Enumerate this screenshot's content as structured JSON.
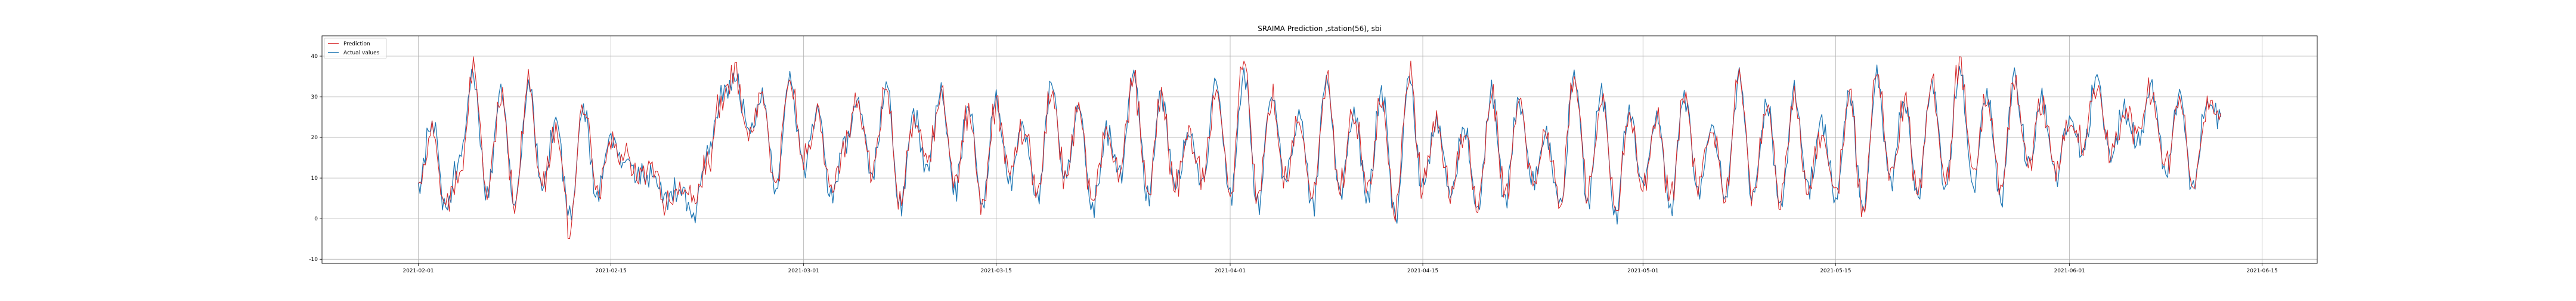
{
  "chart_data": {
    "type": "line",
    "title": "SRAIMA Prediction ,station(56), sbi",
    "xlabel": "",
    "ylabel": "",
    "x_axis": {
      "type": "date",
      "range": [
        "2021-01-25",
        "2021-06-19"
      ],
      "ticks": [
        "2021-02-01",
        "2021-02-15",
        "2021-03-01",
        "2021-03-15",
        "2021-04-01",
        "2021-04-15",
        "2021-05-01",
        "2021-05-15",
        "2021-06-01",
        "2021-06-15"
      ]
    },
    "y_axis": {
      "range": [
        -11,
        45
      ],
      "ticks": [
        -10,
        0,
        10,
        20,
        30,
        40
      ]
    },
    "grid": true,
    "legend": {
      "position": "top-left"
    },
    "data_start": "2021-02-01",
    "data_end": "2021-06-12",
    "series": [
      {
        "name": "Prediction",
        "color": "#d62728",
        "x": [
          "2021-02-01",
          "2021-02-02",
          "2021-02-03",
          "2021-02-04",
          "2021-02-05",
          "2021-02-06",
          "2021-02-07",
          "2021-02-08",
          "2021-02-09",
          "2021-02-10",
          "2021-02-11",
          "2021-02-12",
          "2021-02-13",
          "2021-02-14",
          "2021-02-15",
          "2021-02-16",
          "2021-02-17",
          "2021-02-18",
          "2021-02-19",
          "2021-02-20",
          "2021-02-21",
          "2021-02-22",
          "2021-02-23",
          "2021-02-24",
          "2021-02-25",
          "2021-02-26",
          "2021-02-27",
          "2021-02-28",
          "2021-03-01",
          "2021-03-02",
          "2021-03-03",
          "2021-03-04",
          "2021-03-05",
          "2021-03-06",
          "2021-03-07",
          "2021-03-08",
          "2021-03-09",
          "2021-03-10",
          "2021-03-11",
          "2021-03-12",
          "2021-03-13",
          "2021-03-14",
          "2021-03-15",
          "2021-03-16",
          "2021-03-17",
          "2021-03-18",
          "2021-03-19",
          "2021-03-20",
          "2021-03-21",
          "2021-03-22",
          "2021-03-23",
          "2021-03-24",
          "2021-03-25",
          "2021-03-26",
          "2021-03-27",
          "2021-03-28",
          "2021-03-29",
          "2021-03-30",
          "2021-03-31",
          "2021-04-01",
          "2021-04-02",
          "2021-04-03",
          "2021-04-04",
          "2021-04-05",
          "2021-04-06",
          "2021-04-07",
          "2021-04-08",
          "2021-04-09",
          "2021-04-10",
          "2021-04-11",
          "2021-04-12",
          "2021-04-13",
          "2021-04-14",
          "2021-04-15",
          "2021-04-16",
          "2021-04-17",
          "2021-04-18",
          "2021-04-19",
          "2021-04-20",
          "2021-04-21",
          "2021-04-22",
          "2021-04-23",
          "2021-04-24",
          "2021-04-25",
          "2021-04-26",
          "2021-04-27",
          "2021-04-28",
          "2021-04-29",
          "2021-04-30",
          "2021-05-01",
          "2021-05-02",
          "2021-05-03",
          "2021-05-04",
          "2021-05-05",
          "2021-05-06",
          "2021-05-07",
          "2021-05-08",
          "2021-05-09",
          "2021-05-10",
          "2021-05-11",
          "2021-05-12",
          "2021-05-13",
          "2021-05-14",
          "2021-05-15",
          "2021-05-16",
          "2021-05-17",
          "2021-05-18",
          "2021-05-19",
          "2021-05-20",
          "2021-05-21",
          "2021-05-22",
          "2021-05-23",
          "2021-05-24",
          "2021-05-25",
          "2021-05-26",
          "2021-05-27",
          "2021-05-28",
          "2021-05-29",
          "2021-05-30",
          "2021-05-31",
          "2021-06-01",
          "2021-06-02",
          "2021-06-03",
          "2021-06-04",
          "2021-06-05",
          "2021-06-06",
          "2021-06-07",
          "2021-06-08",
          "2021-06-09",
          "2021-06-10",
          "2021-06-11",
          "2021-06-12"
        ],
        "values": [
          10,
          22,
          3,
          12,
          38,
          6,
          30,
          4,
          34,
          8,
          22,
          -2,
          28,
          6,
          18,
          16,
          10,
          12,
          4,
          8,
          3,
          14,
          28,
          36,
          20,
          30,
          8,
          34,
          14,
          26,
          6,
          18,
          28,
          12,
          32,
          4,
          24,
          14,
          30,
          8,
          26,
          4,
          28,
          10,
          22,
          6,
          32,
          10,
          26,
          4,
          20,
          12,
          34,
          6,
          30,
          8,
          20,
          10,
          33,
          6,
          40,
          4,
          30,
          10,
          24,
          4,
          34,
          8,
          26,
          6,
          30,
          2,
          36,
          8,
          24,
          6,
          22,
          4,
          30,
          6,
          28,
          10,
          20,
          4,
          36,
          6,
          30,
          2,
          26,
          8,
          24,
          4,
          30,
          8,
          22,
          6,
          34,
          6,
          28,
          4,
          30,
          8,
          22,
          6,
          30,
          2,
          36,
          10,
          28,
          6,
          34,
          8,
          38,
          10,
          30,
          6,
          33,
          14,
          28,
          12,
          24,
          18,
          34,
          16,
          26,
          20,
          32,
          12,
          30,
          8,
          28,
          26
        ]
      },
      {
        "name": "Actual values",
        "color": "#1f77b4",
        "x": [
          "2021-02-01",
          "2021-02-02",
          "2021-02-03",
          "2021-02-04",
          "2021-02-05",
          "2021-02-06",
          "2021-02-07",
          "2021-02-08",
          "2021-02-09",
          "2021-02-10",
          "2021-02-11",
          "2021-02-12",
          "2021-02-13",
          "2021-02-14",
          "2021-02-15",
          "2021-02-16",
          "2021-02-17",
          "2021-02-18",
          "2021-02-19",
          "2021-02-20",
          "2021-02-21",
          "2021-02-22",
          "2021-02-23",
          "2021-02-24",
          "2021-02-25",
          "2021-02-26",
          "2021-02-27",
          "2021-02-28",
          "2021-03-01",
          "2021-03-02",
          "2021-03-03",
          "2021-03-04",
          "2021-03-05",
          "2021-03-06",
          "2021-03-07",
          "2021-03-08",
          "2021-03-09",
          "2021-03-10",
          "2021-03-11",
          "2021-03-12",
          "2021-03-13",
          "2021-03-14",
          "2021-03-15",
          "2021-03-16",
          "2021-03-17",
          "2021-03-18",
          "2021-03-19",
          "2021-03-20",
          "2021-03-21",
          "2021-03-22",
          "2021-03-23",
          "2021-03-24",
          "2021-03-25",
          "2021-03-26",
          "2021-03-27",
          "2021-03-28",
          "2021-03-29",
          "2021-03-30",
          "2021-03-31",
          "2021-04-01",
          "2021-04-02",
          "2021-04-03",
          "2021-04-04",
          "2021-04-05",
          "2021-04-06",
          "2021-04-07",
          "2021-04-08",
          "2021-04-09",
          "2021-04-10",
          "2021-04-11",
          "2021-04-12",
          "2021-04-13",
          "2021-04-14",
          "2021-04-15",
          "2021-04-16",
          "2021-04-17",
          "2021-04-18",
          "2021-04-19",
          "2021-04-20",
          "2021-04-21",
          "2021-04-22",
          "2021-04-23",
          "2021-04-24",
          "2021-04-25",
          "2021-04-26",
          "2021-04-27",
          "2021-04-28",
          "2021-04-29",
          "2021-04-30",
          "2021-05-01",
          "2021-05-02",
          "2021-05-03",
          "2021-05-04",
          "2021-05-05",
          "2021-05-06",
          "2021-05-07",
          "2021-05-08",
          "2021-05-09",
          "2021-05-10",
          "2021-05-11",
          "2021-05-12",
          "2021-05-13",
          "2021-05-14",
          "2021-05-15",
          "2021-05-16",
          "2021-05-17",
          "2021-05-18",
          "2021-05-19",
          "2021-05-20",
          "2021-05-21",
          "2021-05-22",
          "2021-05-23",
          "2021-05-24",
          "2021-05-25",
          "2021-05-26",
          "2021-05-27",
          "2021-05-28",
          "2021-05-29",
          "2021-05-30",
          "2021-05-31",
          "2021-06-01",
          "2021-06-02",
          "2021-06-03",
          "2021-06-04",
          "2021-06-05",
          "2021-06-06",
          "2021-06-07",
          "2021-06-08",
          "2021-06-09",
          "2021-06-10",
          "2021-06-11",
          "2021-06-12"
        ],
        "values": [
          9,
          24,
          2,
          14,
          36,
          5,
          32,
          3,
          33,
          7,
          24,
          0,
          27,
          5,
          20,
          15,
          11,
          11,
          5,
          7,
          2,
          15,
          30,
          34,
          22,
          29,
          7,
          35,
          13,
          27,
          5,
          19,
          29,
          11,
          33,
          3,
          25,
          13,
          31,
          7,
          27,
          3,
          29,
          9,
          23,
          5,
          33,
          9,
          27,
          3,
          21,
          11,
          35,
          5,
          31,
          7,
          21,
          9,
          34,
          5,
          36,
          3,
          31,
          9,
          25,
          3,
          35,
          7,
          27,
          5,
          31,
          1,
          35,
          7,
          25,
          5,
          23,
          3,
          31,
          5,
          29,
          9,
          21,
          3,
          35,
          5,
          31,
          1,
          27,
          7,
          25,
          3,
          31,
          7,
          23,
          5,
          35,
          5,
          29,
          3,
          31,
          7,
          23,
          5,
          31,
          1,
          35,
          9,
          29,
          5,
          35,
          7,
          36,
          9,
          31,
          5,
          34,
          13,
          29,
          11,
          25,
          17,
          35,
          15,
          27,
          19,
          33,
          11,
          31,
          7,
          29,
          25
        ]
      }
    ]
  }
}
